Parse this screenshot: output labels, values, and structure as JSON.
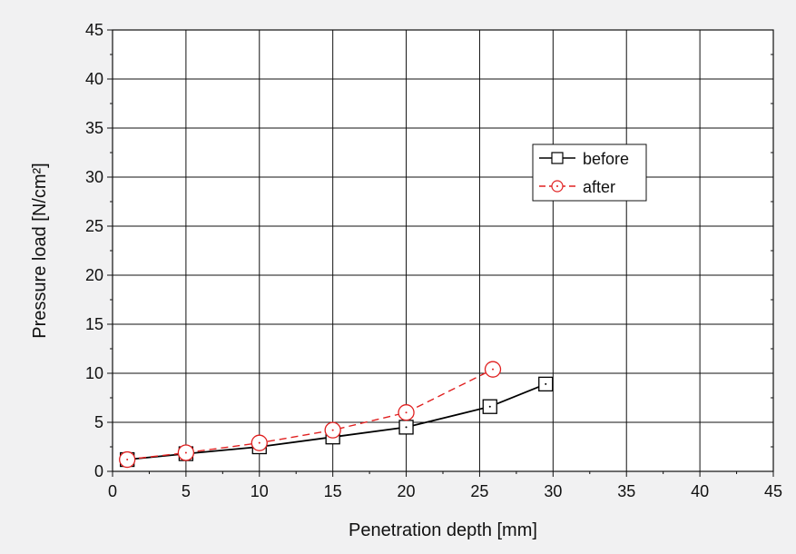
{
  "chart_data": {
    "type": "line",
    "title": "",
    "xlabel": "Penetration depth [mm]",
    "ylabel": "Pressure load [N/cm²]",
    "xlim": [
      0,
      45
    ],
    "ylim": [
      0,
      45
    ],
    "xticks": [
      0,
      5,
      10,
      15,
      20,
      25,
      30,
      35,
      40,
      45
    ],
    "yticks": [
      0,
      5,
      10,
      15,
      20,
      25,
      30,
      35,
      40,
      45
    ],
    "grid": true,
    "legend_position": "upper-right",
    "background_color": "#f1f1f2",
    "plot_background_color": "#ffffff",
    "series": [
      {
        "name": "before",
        "color": "#000000",
        "line_style": "solid",
        "marker": "square",
        "points": [
          {
            "x": 1,
            "y": 1.2
          },
          {
            "x": 5,
            "y": 1.8
          },
          {
            "x": 10,
            "y": 2.5
          },
          {
            "x": 15,
            "y": 3.5
          },
          {
            "x": 20,
            "y": 4.5
          },
          {
            "x": 25.7,
            "y": 6.6
          },
          {
            "x": 29.5,
            "y": 8.9
          }
        ]
      },
      {
        "name": "after",
        "color": "#e02020",
        "line_style": "dashed",
        "marker": "circle",
        "points": [
          {
            "x": 1,
            "y": 1.2
          },
          {
            "x": 5,
            "y": 1.9
          },
          {
            "x": 10,
            "y": 2.9
          },
          {
            "x": 15,
            "y": 4.2
          },
          {
            "x": 20,
            "y": 6.0
          },
          {
            "x": 25.9,
            "y": 10.4
          }
        ]
      }
    ]
  }
}
